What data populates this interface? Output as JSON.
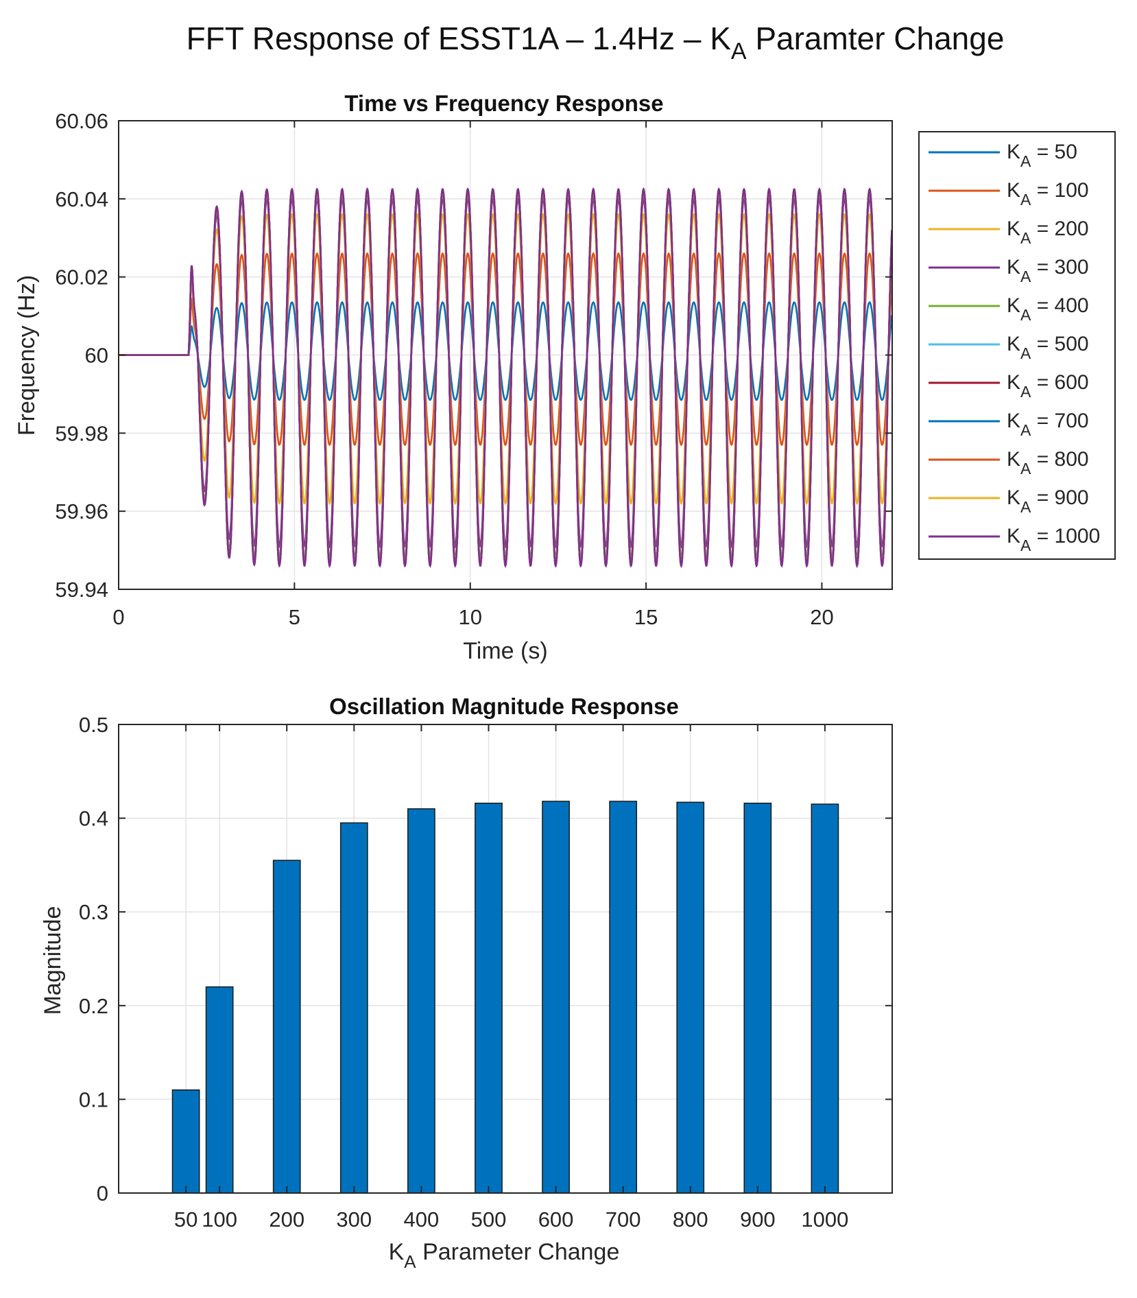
{
  "figure": {
    "title_main": "FFT Response of ESST1A – 1.4Hz – K",
    "title_sub": "A",
    "title_end": " Paramter Change"
  },
  "chart_data": [
    {
      "type": "line",
      "title": "Time vs Frequency Response",
      "xlabel": "Time (s)",
      "ylabel": "Frequency (Hz)",
      "xlim": [
        0,
        22
      ],
      "ylim": [
        59.94,
        60.06
      ],
      "xticks": [
        0,
        5,
        10,
        15,
        20
      ],
      "xtick_labels": [
        "0",
        "5",
        "10",
        "15",
        "20"
      ],
      "yticks": [
        59.94,
        59.96,
        59.98,
        60,
        60.02,
        60.04,
        60.06
      ],
      "ytick_labels": [
        "59.94",
        "59.96",
        "59.98",
        "60",
        "60.02",
        "60.04",
        "60.06"
      ],
      "grid": true,
      "legend": "outside-right",
      "oscillation": {
        "frequency_hz": 1.4,
        "onset_s": 2.0,
        "baseline_hz": 60
      },
      "series": [
        {
          "name": "K",
          "sub": "A",
          "label_rest": " = 50",
          "color": "#0072BD",
          "peak": 60.0135,
          "trough": 59.9885
        },
        {
          "name": "K",
          "sub": "A",
          "label_rest": " = 100",
          "color": "#D95319",
          "peak": 60.026,
          "trough": 59.977
        },
        {
          "name": "K",
          "sub": "A",
          "label_rest": " = 200",
          "color": "#EDB120",
          "peak": 60.036,
          "trough": 59.962
        },
        {
          "name": "K",
          "sub": "A",
          "label_rest": " = 300",
          "color": "#7E2F8E",
          "peak": 60.04,
          "trough": 59.951
        },
        {
          "name": "K",
          "sub": "A",
          "label_rest": " = 400",
          "color": "#77AC30",
          "peak": 60.0415,
          "trough": 59.948
        },
        {
          "name": "K",
          "sub": "A",
          "label_rest": " = 500",
          "color": "#4DBEEE",
          "peak": 60.042,
          "trough": 59.947
        },
        {
          "name": "K",
          "sub": "A",
          "label_rest": " = 600",
          "color": "#A2142F",
          "peak": 60.0422,
          "trough": 59.9465
        },
        {
          "name": "K",
          "sub": "A",
          "label_rest": " = 700",
          "color": "#0072BD",
          "peak": 60.0423,
          "trough": 59.9462
        },
        {
          "name": "K",
          "sub": "A",
          "label_rest": " = 800",
          "color": "#D95319",
          "peak": 60.0423,
          "trough": 59.9462
        },
        {
          "name": "K",
          "sub": "A",
          "label_rest": " = 900",
          "color": "#EDB120",
          "peak": 60.0424,
          "trough": 59.9461
        },
        {
          "name": "K",
          "sub": "A",
          "label_rest": " = 1000",
          "color": "#7E2F8E",
          "peak": 60.0425,
          "trough": 59.946
        }
      ]
    },
    {
      "type": "bar",
      "title": "Oscillation Magnitude Response",
      "xlabel_main": "K",
      "xlabel_sub": "A",
      "xlabel_end": " Parameter Change",
      "ylabel": "Magnitude",
      "xlim": [
        -50,
        1100
      ],
      "ylim": [
        0,
        0.5
      ],
      "yticks": [
        0,
        0.1,
        0.2,
        0.3,
        0.4,
        0.5
      ],
      "ytick_labels": [
        "0",
        "0.1",
        "0.2",
        "0.3",
        "0.4",
        "0.5"
      ],
      "grid": true,
      "bar_color": "#0072BD",
      "x": [
        50,
        100,
        200,
        300,
        400,
        500,
        600,
        700,
        800,
        900,
        1000
      ],
      "categories": [
        "50",
        "100",
        "200",
        "300",
        "400",
        "500",
        "600",
        "700",
        "800",
        "900",
        "1000"
      ],
      "values": [
        0.11,
        0.22,
        0.355,
        0.395,
        0.41,
        0.416,
        0.418,
        0.418,
        0.417,
        0.416,
        0.415
      ]
    }
  ]
}
